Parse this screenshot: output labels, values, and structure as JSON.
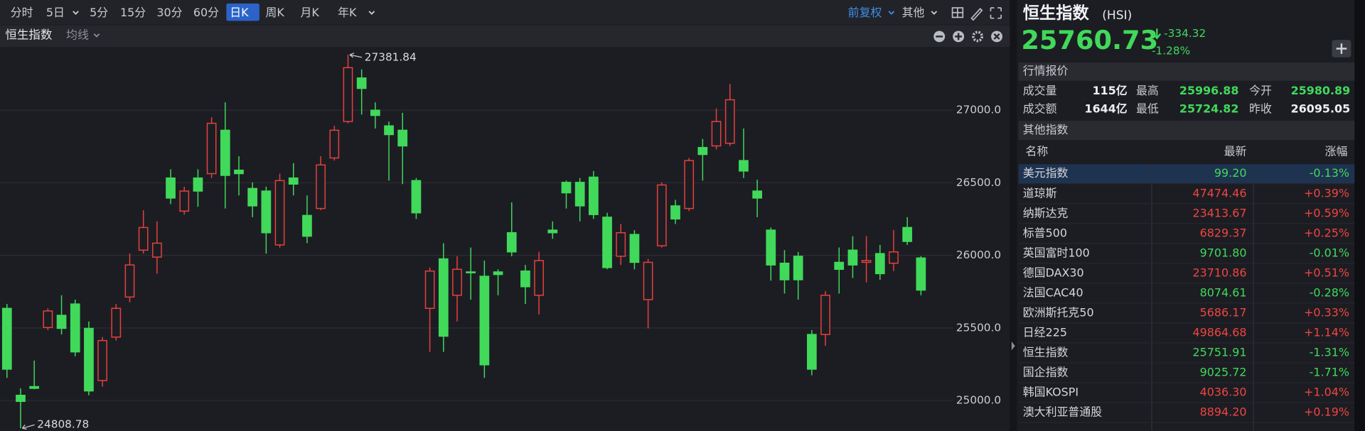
{
  "toolbar": {
    "periods": [
      "分时",
      "5日",
      "5分",
      "15分",
      "30分",
      "60分",
      "日K",
      "周K",
      "月K",
      "年K"
    ],
    "active_period": "日K",
    "adjust": "前复权",
    "other": "其他"
  },
  "chart_header": {
    "name": "恒生指数",
    "indicator": "均线"
  },
  "chart_data": {
    "type": "candlestick",
    "up_color": "#e8413c",
    "down_color": "#41d95a",
    "ylim": [
      24790,
      27430
    ],
    "yticks": [
      {
        "value": 25000,
        "label": "25000.0"
      },
      {
        "value": 25500,
        "label": "25500.0"
      },
      {
        "value": 26000,
        "label": "26000.0"
      },
      {
        "value": 26500,
        "label": "26500.0"
      },
      {
        "value": 27000,
        "label": "27000.0"
      }
    ],
    "grid": true,
    "open": [
      25635,
      25036,
      25096,
      25503,
      25587,
      25665,
      25497,
      25138,
      25437,
      25713,
      26036,
      25988,
      26533,
      26305,
      26533,
      26563,
      26862,
      26587,
      26461,
      26443,
      26072,
      26533,
      26275,
      26323,
      26671,
      26922,
      27222,
      27000,
      26892,
      26862,
      26515,
      25635,
      25976,
      25725,
      25886,
      25856,
      25886,
      26156,
      25892,
      25725,
      26174,
      26503,
      26503,
      26539,
      26263,
      25994,
      26144,
      25695,
      26066,
      26341,
      26323,
      26743,
      26754,
      26772,
      26653,
      26443,
      26174,
      25946,
      25994,
      25455,
      25455,
      25952,
      26036,
      25952,
      26012,
      25946,
      26192,
      25982
    ],
    "high": [
      25665,
      25084,
      25275,
      25635,
      25725,
      25695,
      25545,
      25437,
      25665,
      26012,
      26311,
      26234,
      26593,
      26473,
      26593,
      26952,
      27054,
      26683,
      26503,
      26473,
      26563,
      26635,
      26413,
      26683,
      26892,
      27381.84,
      27281,
      27054,
      26922,
      26982,
      26533,
      25916,
      26084,
      25994,
      26054,
      25964,
      25904,
      26365,
      25934,
      26024,
      26234,
      26515,
      26533,
      26581,
      26293,
      26216,
      26174,
      25976,
      26503,
      26383,
      26671,
      26802,
      27012,
      27180,
      26874,
      26521,
      26192,
      26036,
      26024,
      25485,
      25754,
      26054,
      26132,
      26132,
      26072,
      26174,
      26263,
      25994
    ],
    "low": [
      25156,
      24808.78,
      25078,
      25485,
      25455,
      25305,
      25036,
      25096,
      25413,
      25677,
      26012,
      25874,
      26353,
      26281,
      26335,
      26533,
      26323,
      26413,
      26263,
      26012,
      26054,
      26413,
      26084,
      26311,
      26653,
      26910,
      26970,
      26874,
      26515,
      26491,
      26251,
      25335,
      25335,
      25545,
      25695,
      25156,
      25725,
      25994,
      25665,
      25593,
      26114,
      26323,
      26234,
      26251,
      25904,
      25934,
      25904,
      25497,
      26054,
      26216,
      26305,
      26515,
      26730,
      26754,
      26533,
      26263,
      25826,
      25737,
      25695,
      25174,
      25377,
      25737,
      25844,
      25814,
      25832,
      25892,
      26072,
      25725
    ],
    "close": [
      25216,
      24994,
      25084,
      25617,
      25497,
      25335,
      25066,
      25413,
      25635,
      25934,
      26192,
      26084,
      26395,
      26443,
      26443,
      26910,
      26551,
      26563,
      26341,
      26156,
      26515,
      26491,
      26132,
      26623,
      26862,
      27293,
      27150,
      26964,
      26832,
      26754,
      26293,
      25892,
      25443,
      25904,
      25880,
      25246,
      25868,
      26024,
      25784,
      25964,
      26156,
      26431,
      26341,
      26281,
      25916,
      26156,
      25952,
      25952,
      26485,
      26251,
      26653,
      26695,
      26922,
      27072,
      26581,
      26395,
      25934,
      25832,
      25832,
      25216,
      25725,
      25904,
      25934,
      25964,
      25874,
      26024,
      26096,
      25760.73
    ],
    "max_index": 25,
    "min_index": 1
  },
  "quote": {
    "name": "恒生指数",
    "code": "(HSI)",
    "price": "25760.73",
    "change": "-334.32",
    "change_pct": "-1.28%",
    "section": "行情报价",
    "rows": [
      [
        [
          "成交量",
          "115亿"
        ],
        [
          "最高",
          "25996.88"
        ],
        [
          "今开",
          "25980.89"
        ]
      ],
      [
        [
          "成交额",
          "1644亿"
        ],
        [
          "最低",
          "25724.82"
        ],
        [
          "昨收",
          "26095.05"
        ]
      ]
    ]
  },
  "indices": {
    "section": "其他指数",
    "columns": [
      "名称",
      "最新",
      "涨幅"
    ],
    "rows": [
      [
        "美元指数",
        "99.20",
        "-0.13%"
      ],
      [
        "道琼斯",
        "47474.46",
        "+0.39%"
      ],
      [
        "纳斯达克",
        "23413.67",
        "+0.59%"
      ],
      [
        "标普500",
        "6829.37",
        "+0.25%"
      ],
      [
        "英国富时100",
        "9701.80",
        "-0.01%"
      ],
      [
        "德国DAX30",
        "23710.86",
        "+0.51%"
      ],
      [
        "法国CAC40",
        "8074.61",
        "-0.28%"
      ],
      [
        "欧洲斯托克50",
        "5686.17",
        "+0.33%"
      ],
      [
        "日经225",
        "49864.68",
        "+1.14%"
      ],
      [
        "恒生指数",
        "25751.91",
        "-1.31%"
      ],
      [
        "国企指数",
        "9025.72",
        "-1.71%"
      ],
      [
        "韩国KOSPI",
        "4036.30",
        "+1.04%"
      ],
      [
        "澳大利亚普通股",
        "8894.20",
        "+0.19%"
      ]
    ]
  }
}
